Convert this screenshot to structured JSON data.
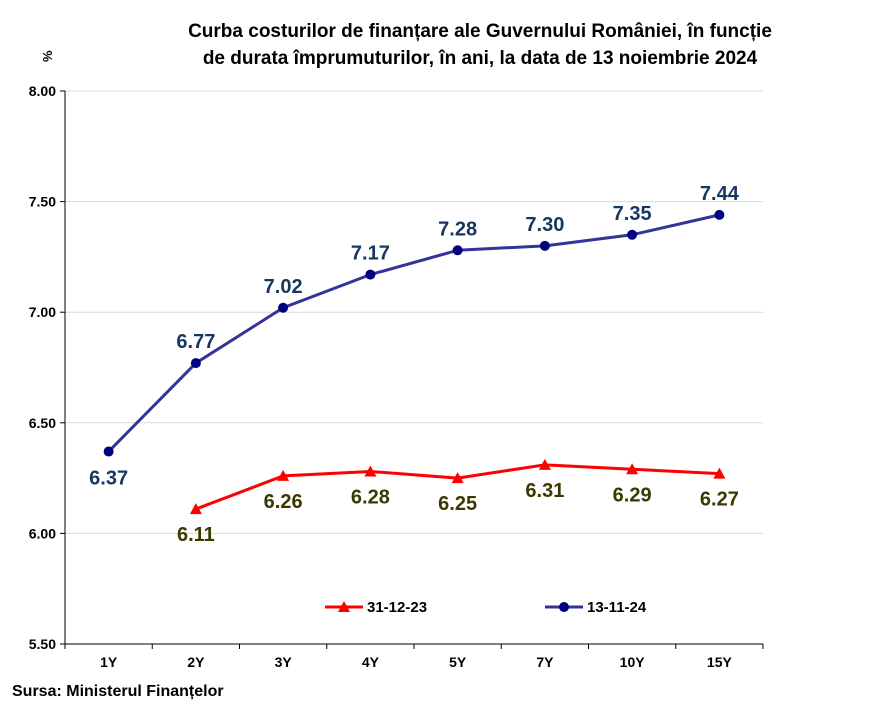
{
  "title_line1": "Curba costurilor de finanțare ale Guvernului României, în funcție",
  "title_line2": "de durata împrumuturilor, în ani, la data de 13 noiembrie 2024",
  "ylabel": "%",
  "source": "Sursa: Ministerul Finanțelor",
  "chart_data": {
    "type": "line",
    "title": "Curba costurilor de finanțare ale Guvernului României, în funcție de durata împrumuturilor, în ani, la data de 13 noiembrie 2024",
    "ylabel": "%",
    "xlabel": "",
    "categories": [
      "1Y",
      "2Y",
      "3Y",
      "4Y",
      "5Y",
      "7Y",
      "10Y",
      "15Y"
    ],
    "yticks": [
      "5.50",
      "6.00",
      "6.50",
      "7.00",
      "7.50",
      "8.00"
    ],
    "ylim": [
      5.5,
      8.0
    ],
    "grid": true,
    "legend_position": "bottom-center",
    "series": [
      {
        "name": "31-12-23",
        "color": "#ff0000",
        "label_color": "#3a3a00",
        "marker": "triangle",
        "values": [
          null,
          6.11,
          6.26,
          6.28,
          6.25,
          6.31,
          6.29,
          6.27
        ],
        "labels": [
          "",
          "6.11",
          "6.26",
          "6.28",
          "6.25",
          "6.31",
          "6.29",
          "6.27"
        ]
      },
      {
        "name": "13-11-24",
        "color": "#333399",
        "label_color": "#17375e",
        "marker": "circle",
        "values": [
          6.37,
          6.77,
          7.02,
          7.17,
          7.28,
          7.3,
          7.35,
          7.44
        ],
        "labels": [
          "6.37",
          "6.77",
          "7.02",
          "7.17",
          "7.28",
          "7.30",
          "7.35",
          "7.44"
        ]
      }
    ]
  }
}
